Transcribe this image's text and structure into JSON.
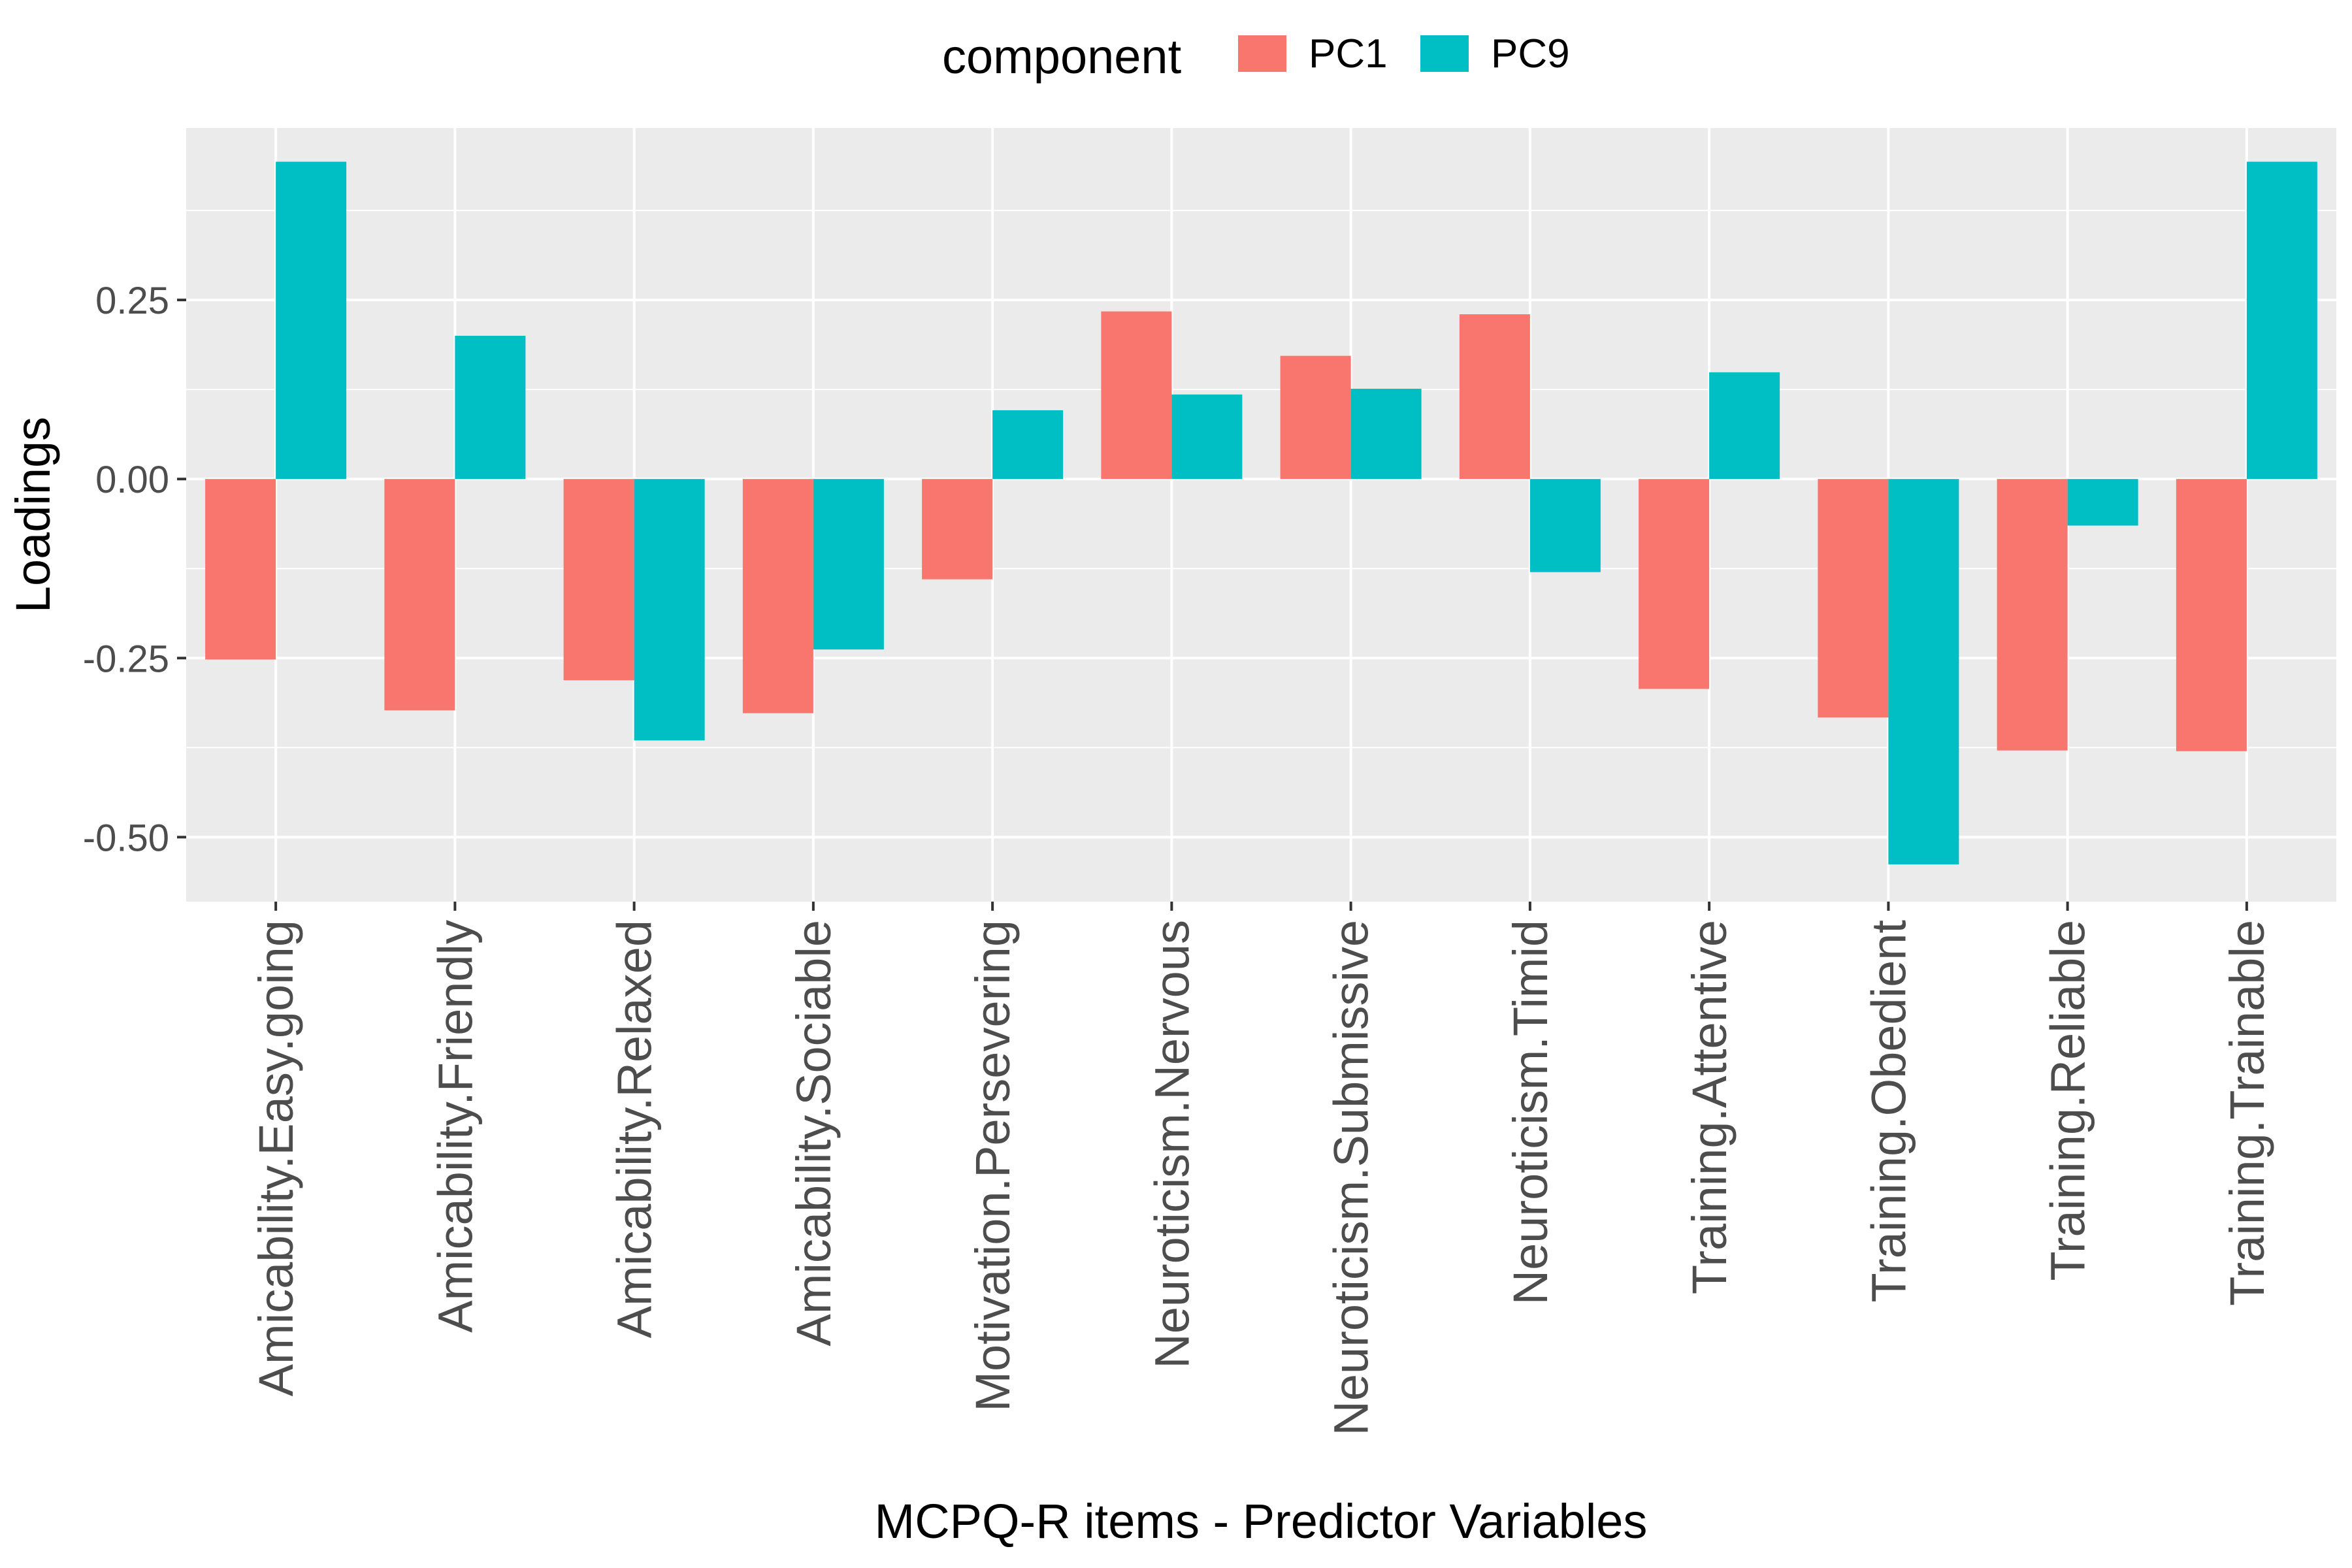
{
  "chart_data": {
    "type": "bar",
    "xlabel": "MCPQ-R items - Predictor Variables",
    "ylabel": "Loadings",
    "legend_title": "component",
    "legend_position": "top",
    "grid": true,
    "ylim": [
      -0.59,
      0.49
    ],
    "yticks": [
      -0.5,
      -0.25,
      0,
      0.25
    ],
    "ytick_labels": [
      "-0.50",
      "-0.25",
      "0.00",
      "0.25"
    ],
    "categories": [
      "Amicability.Easy.going",
      "Amicability.Friendly",
      "Amicability.Relaxed",
      "Amicability.Sociable",
      "Motivation.Persevering",
      "Neuroticism.Nervous",
      "Neuroticism.Submissive",
      "Neuroticism.Timid",
      "Training.Attentive",
      "Training.Obedient",
      "Training.Reliable",
      "Training.Trainable"
    ],
    "series": [
      {
        "name": "PC1",
        "color": "#F8766D",
        "values": [
          -0.252,
          -0.323,
          -0.281,
          -0.327,
          -0.14,
          0.234,
          0.172,
          0.23,
          -0.293,
          -0.333,
          -0.379,
          -0.38
        ]
      },
      {
        "name": "PC9",
        "color": "#00BFC4",
        "values": [
          0.443,
          0.2,
          -0.365,
          -0.238,
          0.096,
          0.118,
          0.126,
          -0.13,
          0.149,
          -0.538,
          -0.065,
          0.443
        ]
      }
    ],
    "colors": {
      "panel_background": "#EBEBEB",
      "grid_line": "#FFFFFF",
      "tick_text": "#4D4D4D",
      "axis_title": "#000000"
    }
  }
}
